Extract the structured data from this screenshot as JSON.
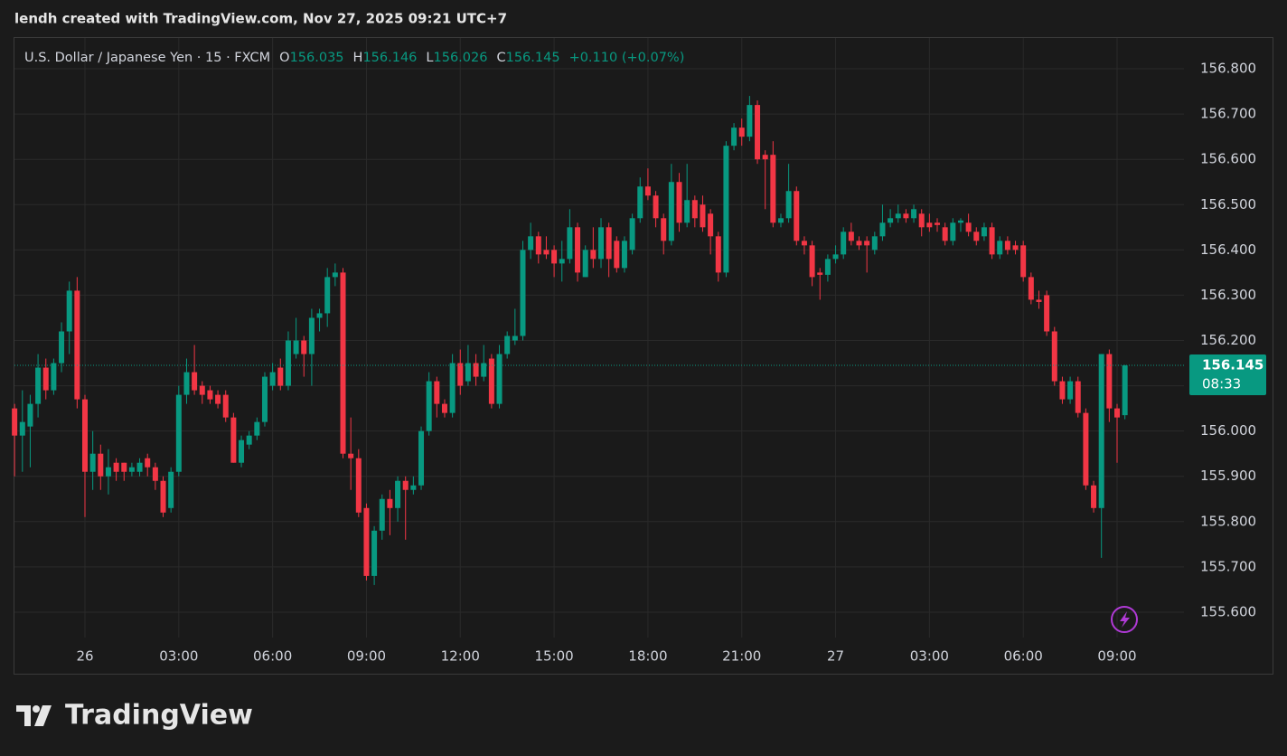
{
  "header": {
    "credit": "lendh created with TradingView.com, Nov 27, 2025 09:21 UTC+7"
  },
  "brand": "TradingView",
  "chart_data": {
    "type": "candlestick",
    "legend": {
      "symbol": "U.S. Dollar / Japanese Yen · 15 · FXCM",
      "open_label": "O",
      "open": "156.035",
      "high_label": "H",
      "high": "156.146",
      "low_label": "L",
      "low": "156.026",
      "close_label": "C",
      "close": "156.145",
      "change": "+0.110 (+0.07%)"
    },
    "categories": [
      null,
      null,
      null,
      null,
      null,
      null,
      null,
      null,
      null,
      "26",
      null,
      null,
      null,
      null,
      null,
      null,
      null,
      null,
      null,
      null,
      null,
      "03:00",
      null,
      null,
      null,
      null,
      null,
      null,
      null,
      null,
      null,
      null,
      null,
      "06:00",
      null,
      null,
      null,
      null,
      null,
      null,
      null,
      null,
      null,
      null,
      null,
      "09:00",
      null,
      null,
      null,
      null,
      null,
      null,
      null,
      null,
      null,
      null,
      null,
      "12:00",
      null,
      null,
      null,
      null,
      null,
      null,
      null,
      null,
      null,
      null,
      null,
      "15:00",
      null,
      null,
      null,
      null,
      null,
      null,
      null,
      null,
      null,
      null,
      null,
      "18:00",
      null,
      null,
      null,
      null,
      null,
      null,
      null,
      null,
      null,
      null,
      null,
      "21:00",
      null,
      null,
      null,
      null,
      null,
      null,
      null,
      null,
      null,
      null,
      null,
      "27",
      null,
      null,
      null,
      null,
      null,
      null,
      null,
      null,
      null,
      null,
      null,
      "03:00",
      null,
      null,
      null,
      null,
      null,
      null,
      null,
      null,
      null,
      null,
      null,
      "06:00",
      null,
      null,
      null,
      null,
      null,
      null,
      null,
      null,
      null,
      null,
      null,
      "09:00",
      null
    ],
    "open": [
      156.05,
      155.99,
      156.01,
      156.06,
      156.14,
      156.09,
      156.15,
      156.22,
      156.31,
      156.07,
      155.91,
      155.95,
      155.9,
      155.93,
      155.93,
      155.91,
      155.91,
      155.94,
      155.92,
      155.89,
      155.83,
      155.91,
      156.08,
      156.13,
      156.1,
      156.09,
      156.08,
      156.08,
      156.03,
      155.93,
      155.97,
      155.99,
      156.02,
      156.1,
      156.14,
      156.1,
      156.17,
      156.2,
      156.17,
      156.25,
      156.26,
      156.34,
      156.35,
      155.95,
      155.94,
      155.83,
      155.68,
      155.78,
      155.85,
      155.83,
      155.89,
      155.87,
      155.88,
      156.0,
      156.11,
      156.06,
      156.04,
      156.15,
      156.11,
      156.15,
      156.12,
      156.16,
      156.06,
      156.17,
      156.2,
      156.21,
      156.4,
      156.43,
      156.4,
      156.4,
      156.37,
      156.38,
      156.45,
      156.34,
      156.4,
      156.38,
      156.45,
      156.42,
      156.36,
      156.4,
      156.47,
      156.54,
      156.52,
      156.47,
      156.42,
      156.55,
      156.46,
      156.51,
      156.5,
      156.48,
      156.43,
      156.35,
      156.63,
      156.67,
      156.65,
      156.72,
      156.61,
      156.61,
      156.46,
      156.47,
      156.53,
      156.42,
      156.41,
      156.35,
      156.345,
      156.38,
      156.39,
      156.44,
      156.42,
      156.42,
      156.4,
      156.43,
      156.46,
      156.47,
      156.48,
      156.47,
      156.48,
      156.46,
      156.46,
      156.45,
      156.42,
      156.46,
      156.46,
      156.44,
      156.43,
      156.45,
      156.39,
      156.42,
      156.41,
      156.41,
      156.34,
      156.29,
      156.3,
      156.22,
      156.11,
      156.07,
      156.11,
      156.04,
      155.88,
      155.83,
      156.17,
      156.05,
      156.035
    ],
    "high": [
      156.06,
      156.09,
      156.08,
      156.17,
      156.16,
      156.16,
      156.24,
      156.33,
      156.34,
      156.08,
      156.0,
      155.97,
      155.96,
      155.94,
      155.93,
      155.93,
      155.94,
      155.95,
      155.93,
      155.9,
      155.92,
      156.1,
      156.16,
      156.19,
      156.11,
      156.1,
      156.09,
      156.09,
      156.04,
      155.99,
      156.0,
      156.03,
      156.13,
      156.15,
      156.16,
      156.22,
      156.25,
      156.21,
      156.27,
      156.27,
      156.36,
      156.37,
      156.36,
      156.03,
      155.96,
      155.84,
      155.79,
      155.86,
      155.87,
      155.9,
      155.9,
      155.9,
      156.01,
      156.13,
      156.12,
      156.07,
      156.17,
      156.18,
      156.19,
      156.17,
      156.19,
      156.17,
      156.19,
      156.22,
      156.27,
      156.42,
      156.46,
      156.44,
      156.43,
      156.41,
      156.42,
      156.49,
      156.46,
      156.41,
      156.45,
      156.47,
      156.46,
      156.43,
      156.43,
      156.48,
      156.56,
      156.58,
      156.53,
      156.48,
      156.59,
      156.57,
      156.59,
      156.52,
      156.52,
      156.49,
      156.44,
      156.64,
      156.68,
      156.69,
      156.74,
      156.73,
      156.62,
      156.64,
      156.48,
      156.59,
      156.54,
      156.43,
      156.42,
      156.36,
      156.39,
      156.41,
      156.45,
      156.46,
      156.43,
      156.43,
      156.44,
      156.5,
      156.49,
      156.5,
      156.49,
      156.5,
      156.49,
      156.48,
      156.47,
      156.46,
      156.47,
      156.47,
      156.48,
      156.45,
      156.46,
      156.46,
      156.43,
      156.43,
      156.42,
      156.42,
      156.35,
      156.31,
      156.31,
      156.23,
      156.12,
      156.12,
      156.12,
      156.05,
      155.89,
      156.17,
      156.18,
      156.06,
      156.146
    ],
    "low": [
      155.9,
      155.91,
      155.92,
      156.03,
      156.07,
      156.08,
      156.13,
      156.17,
      156.05,
      155.81,
      155.87,
      155.87,
      155.86,
      155.89,
      155.89,
      155.9,
      155.9,
      155.9,
      155.87,
      155.81,
      155.82,
      155.9,
      156.06,
      156.08,
      156.06,
      156.06,
      156.05,
      156.02,
      155.93,
      155.92,
      155.96,
      155.98,
      156.01,
      156.09,
      156.09,
      156.09,
      156.16,
      156.12,
      156.1,
      156.22,
      156.23,
      156.32,
      155.94,
      155.87,
      155.81,
      155.67,
      155.66,
      155.76,
      155.77,
      155.8,
      155.76,
      155.86,
      155.87,
      155.99,
      156.03,
      156.03,
      156.03,
      156.08,
      156.1,
      156.1,
      156.11,
      156.05,
      156.05,
      156.16,
      156.19,
      156.2,
      156.38,
      156.37,
      156.38,
      156.34,
      156.33,
      156.37,
      156.33,
      156.34,
      156.36,
      156.36,
      156.34,
      156.35,
      156.35,
      156.39,
      156.46,
      156.51,
      156.45,
      156.39,
      156.41,
      156.44,
      156.45,
      156.45,
      156.44,
      156.39,
      156.33,
      156.34,
      156.62,
      156.63,
      156.64,
      156.59,
      156.49,
      156.45,
      156.45,
      156.46,
      156.41,
      156.39,
      156.32,
      156.29,
      156.33,
      156.37,
      156.38,
      156.41,
      156.4,
      156.35,
      156.39,
      156.42,
      156.45,
      156.46,
      156.46,
      156.46,
      156.43,
      156.44,
      156.44,
      156.41,
      156.41,
      156.44,
      156.43,
      156.41,
      156.42,
      156.38,
      156.38,
      156.39,
      156.39,
      156.33,
      156.28,
      156.27,
      156.21,
      156.1,
      156.06,
      156.06,
      156.03,
      155.87,
      155.82,
      155.72,
      156.02,
      155.93,
      156.026
    ],
    "close": [
      155.99,
      156.02,
      156.06,
      156.14,
      156.09,
      156.15,
      156.22,
      156.31,
      156.07,
      155.91,
      155.95,
      155.9,
      155.92,
      155.91,
      155.91,
      155.92,
      155.93,
      155.92,
      155.89,
      155.82,
      155.91,
      156.08,
      156.13,
      156.09,
      156.08,
      156.07,
      156.06,
      156.03,
      155.93,
      155.98,
      155.99,
      156.02,
      156.12,
      156.13,
      156.1,
      156.2,
      156.2,
      156.17,
      156.25,
      156.26,
      156.34,
      156.35,
      155.95,
      155.94,
      155.82,
      155.68,
      155.78,
      155.85,
      155.83,
      155.89,
      155.87,
      155.88,
      156.0,
      156.11,
      156.06,
      156.04,
      156.15,
      156.1,
      156.15,
      156.12,
      156.15,
      156.06,
      156.17,
      156.21,
      156.21,
      156.4,
      156.43,
      156.39,
      156.39,
      156.37,
      156.38,
      156.45,
      156.35,
      156.4,
      156.38,
      156.45,
      156.38,
      156.36,
      156.42,
      156.47,
      156.54,
      156.52,
      156.47,
      156.42,
      156.55,
      156.46,
      156.51,
      156.47,
      156.45,
      156.43,
      156.35,
      156.63,
      156.67,
      156.65,
      156.72,
      156.6,
      156.6,
      156.46,
      156.47,
      156.53,
      156.42,
      156.41,
      156.34,
      156.345,
      156.38,
      156.39,
      156.44,
      156.42,
      156.41,
      156.41,
      156.43,
      156.46,
      156.47,
      156.48,
      156.47,
      156.49,
      156.45,
      156.45,
      156.455,
      156.42,
      156.46,
      156.465,
      156.44,
      156.42,
      156.45,
      156.39,
      156.42,
      156.4,
      156.4,
      156.34,
      156.29,
      156.285,
      156.22,
      156.11,
      156.07,
      156.11,
      156.04,
      155.88,
      155.83,
      156.17,
      156.05,
      156.03,
      156.145
    ],
    "up_color": "#089981",
    "down_color": "#f23645",
    "ylim": [
      155.544,
      156.868
    ],
    "yticks": [
      {
        "value": 155.6,
        "label": "155.600"
      },
      {
        "value": 155.7,
        "label": "155.700"
      },
      {
        "value": 155.8,
        "label": "155.800"
      },
      {
        "value": 155.9,
        "label": "155.900"
      },
      {
        "value": 156.0,
        "label": "156.000"
      },
      {
        "value": 156.1,
        "label": "156.100"
      },
      {
        "value": 156.2,
        "label": "156.200"
      },
      {
        "value": 156.3,
        "label": "156.300"
      },
      {
        "value": 156.4,
        "label": "156.400"
      },
      {
        "value": 156.5,
        "label": "156.500"
      },
      {
        "value": 156.6,
        "label": "156.600"
      },
      {
        "value": 156.7,
        "label": "156.700"
      },
      {
        "value": 156.8,
        "label": "156.800"
      }
    ],
    "grid": true,
    "last_price": 156.145,
    "countdown": "08:33"
  }
}
